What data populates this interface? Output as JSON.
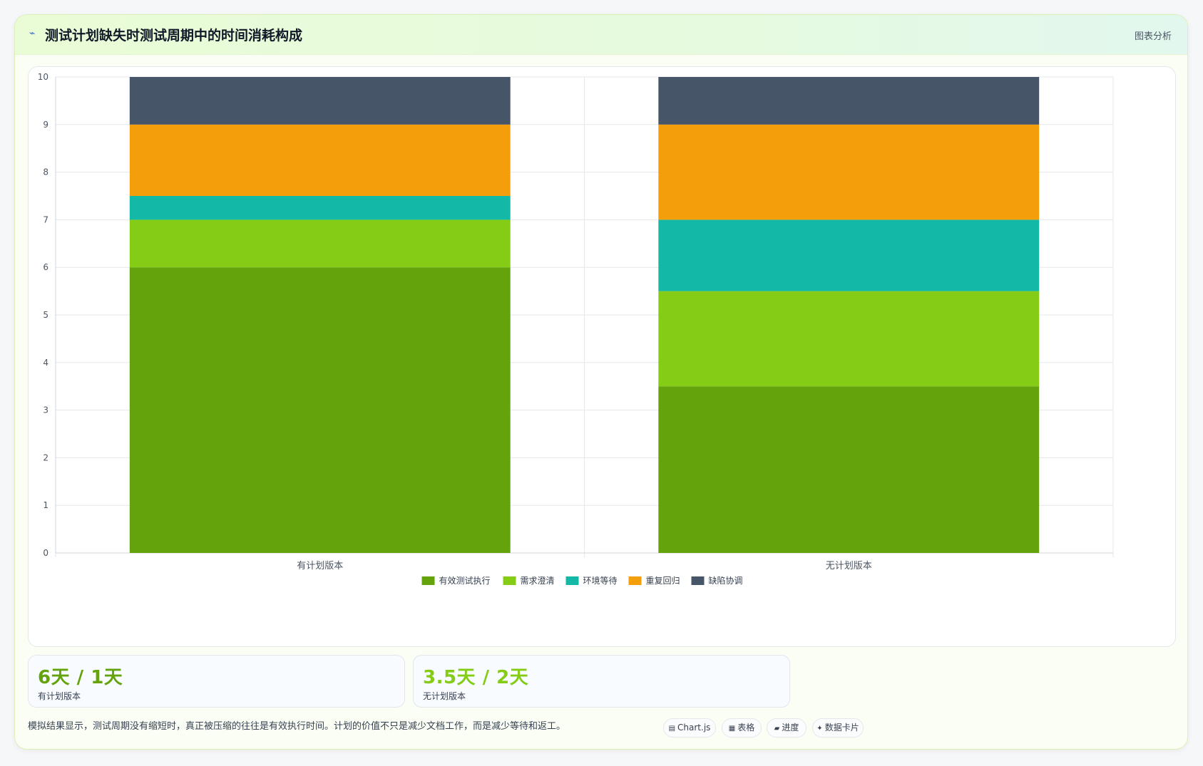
{
  "header": {
    "icon": "chart-wave-icon",
    "title": "测试计划缺失时测试周期中的时间消耗构成",
    "link": "图表分析"
  },
  "chart_data": {
    "type": "bar",
    "stacked": true,
    "categories": [
      "有计划版本",
      "无计划版本"
    ],
    "series": [
      {
        "name": "有效测试执行",
        "color": "#65a30d",
        "values": [
          6,
          3.5
        ]
      },
      {
        "name": "需求澄清",
        "color": "#84cc16",
        "values": [
          1,
          2
        ]
      },
      {
        "name": "环境等待",
        "color": "#14b8a6",
        "values": [
          0.5,
          1.5
        ]
      },
      {
        "name": "重复回归",
        "color": "#f59e0b",
        "values": [
          1.5,
          2
        ]
      },
      {
        "name": "缺陷协调",
        "color": "#475569",
        "values": [
          1,
          1
        ]
      }
    ],
    "ylim": [
      0,
      10
    ],
    "yticks": [
      "0",
      "1",
      "2",
      "3",
      "4",
      "5",
      "6",
      "7",
      "8",
      "9",
      "10"
    ],
    "grid": true,
    "legend": "bottom",
    "title": "",
    "xlabel": "",
    "ylabel": ""
  },
  "stats": [
    {
      "value": "6天 / 1天",
      "label": "有计划版本",
      "color": "#65a30d"
    },
    {
      "value": "3.5天 / 2天",
      "label": "无计划版本",
      "color": "#84cc16"
    }
  ],
  "footnote": "模拟结果显示，测试周期没有缩短时，真正被压缩的往往是有效执行时间。计划的价值不只是减少文档工作，而是减少等待和返工。",
  "chips": [
    {
      "icon": "chart-icon",
      "glyph": "▤",
      "label": "Chart.js"
    },
    {
      "icon": "table-icon",
      "glyph": "▦",
      "label": "表格"
    },
    {
      "icon": "progress-icon",
      "glyph": "▰",
      "label": "进度"
    },
    {
      "icon": "sparkle-icon",
      "glyph": "✦",
      "label": "数据卡片"
    }
  ]
}
